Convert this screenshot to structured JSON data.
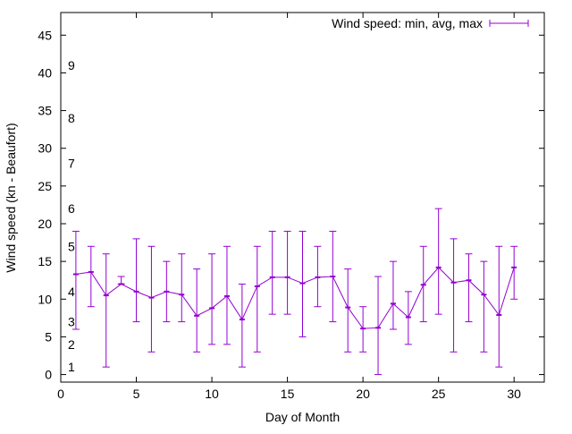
{
  "chart_data": {
    "type": "line",
    "subtype": "errorbars",
    "title": "",
    "xlabel": "Day of Month",
    "ylabel": "Wind speed (kn - Beaufort)",
    "xlim": [
      0,
      32
    ],
    "ylim": [
      -1,
      48
    ],
    "xticks": [
      0,
      5,
      10,
      15,
      20,
      25,
      30
    ],
    "yticks": [
      0,
      5,
      10,
      15,
      20,
      25,
      30,
      35,
      40,
      45
    ],
    "grid": false,
    "legend": {
      "position": "top-right",
      "entries": [
        "Wind speed: min, avg, max"
      ]
    },
    "color": "#9400d3",
    "series": [
      {
        "name": "Wind speed: min, avg, max",
        "x": [
          1,
          2,
          3,
          4,
          5,
          6,
          7,
          8,
          9,
          10,
          11,
          12,
          13,
          14,
          15,
          16,
          17,
          18,
          19,
          20,
          21,
          22,
          23,
          24,
          25,
          26,
          27,
          28,
          29,
          30
        ],
        "avg": [
          13.3,
          13.6,
          10.5,
          12.0,
          11.0,
          10.2,
          11.0,
          10.6,
          7.8,
          8.8,
          10.4,
          7.3,
          11.7,
          12.9,
          12.9,
          12.1,
          12.9,
          13.0,
          8.9,
          6.1,
          6.2,
          9.4,
          7.6,
          11.9,
          14.2,
          12.2,
          12.5,
          10.6,
          7.9,
          14.2
        ],
        "min": [
          6,
          9,
          1,
          12,
          7,
          3,
          7,
          7,
          3,
          4,
          4,
          1,
          3,
          8,
          8,
          5,
          9,
          7,
          3,
          3,
          0,
          6,
          4,
          7,
          8,
          3,
          7,
          3,
          1,
          10
        ],
        "max": [
          19,
          17,
          16,
          13,
          18,
          17,
          15,
          16,
          14,
          16,
          17,
          12,
          17,
          19,
          19,
          19,
          17,
          19,
          14,
          9,
          13,
          15,
          11,
          17,
          22,
          18,
          16,
          15,
          17,
          17
        ]
      }
    ],
    "annotations": [
      {
        "text": "1",
        "y": 1
      },
      {
        "text": "2",
        "y": 4
      },
      {
        "text": "3",
        "y": 7
      },
      {
        "text": "4",
        "y": 11
      },
      {
        "text": "5",
        "y": 17
      },
      {
        "text": "6",
        "y": 22
      },
      {
        "text": "7",
        "y": 28
      },
      {
        "text": "8",
        "y": 34
      },
      {
        "text": "9",
        "y": 41
      }
    ]
  }
}
